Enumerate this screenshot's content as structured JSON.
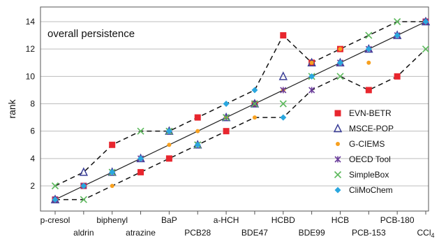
{
  "chart_data": {
    "type": "scatter",
    "title": "overall persistence",
    "ylabel": "rank",
    "ylim": [
      0,
      15
    ],
    "yticks": [
      2,
      4,
      6,
      8,
      10,
      12,
      14
    ],
    "grid": "horizontal",
    "legend_position": "bottom-right",
    "categories": [
      "p-cresol",
      "aldrin",
      "biphenyl",
      "atrazine",
      "BaP",
      "PCB28",
      "a-HCH",
      "BDE47",
      "HCBD",
      "BDE99",
      "HCB",
      "PCB-153",
      "PCB-180",
      "CCl4"
    ],
    "category_label_rows": [
      0,
      1,
      0,
      1,
      0,
      1,
      0,
      1,
      0,
      1,
      0,
      1,
      0,
      1
    ],
    "series": [
      {
        "name": "EVN-BETR",
        "marker": "square",
        "color": "#e8262e",
        "values": [
          1,
          2,
          5,
          3,
          4,
          7,
          6,
          8,
          13,
          11,
          12,
          9,
          10,
          14
        ]
      },
      {
        "name": "MSCE-POP",
        "marker": "triangle",
        "color": "#3b3f98",
        "values": [
          1,
          3,
          3,
          4,
          6,
          5,
          7,
          8,
          10,
          11,
          11,
          12,
          13,
          14
        ]
      },
      {
        "name": "G-CIEMS",
        "marker": "circle",
        "color": "#f7a01f",
        "values": [
          1,
          2,
          2,
          4,
          5,
          6,
          7,
          7,
          9,
          11,
          12,
          11,
          13,
          14
        ]
      },
      {
        "name": "OECD Tool",
        "marker": "star",
        "color": "#6a3d9a",
        "values": [
          1,
          2,
          3,
          4,
          6,
          5,
          7,
          8,
          9,
          9,
          11,
          12,
          13,
          14
        ]
      },
      {
        "name": "SimpleBox",
        "marker": "x",
        "color": "#5cb85c",
        "values": [
          2,
          1,
          3,
          6,
          6,
          5,
          7,
          8,
          8,
          10,
          10,
          13,
          14,
          12
        ]
      },
      {
        "name": "CliMoChem",
        "marker": "diamond",
        "color": "#2aa7df",
        "values": [
          1,
          2,
          3,
          4,
          6,
          5,
          8,
          9,
          7,
          10,
          11,
          12,
          13,
          14
        ]
      }
    ],
    "diagonal": {
      "values": [
        1,
        2,
        3,
        4,
        5,
        6,
        7,
        8,
        9,
        10,
        11,
        12,
        13,
        14
      ]
    },
    "upper_envelope": {
      "values": [
        2,
        3,
        5,
        6,
        6,
        7,
        8,
        9,
        13,
        11,
        12,
        13,
        14,
        14
      ]
    },
    "lower_envelope": {
      "values": [
        1,
        1,
        2,
        3,
        4,
        5,
        6,
        7,
        7,
        9,
        10,
        9,
        10,
        12
      ]
    }
  }
}
